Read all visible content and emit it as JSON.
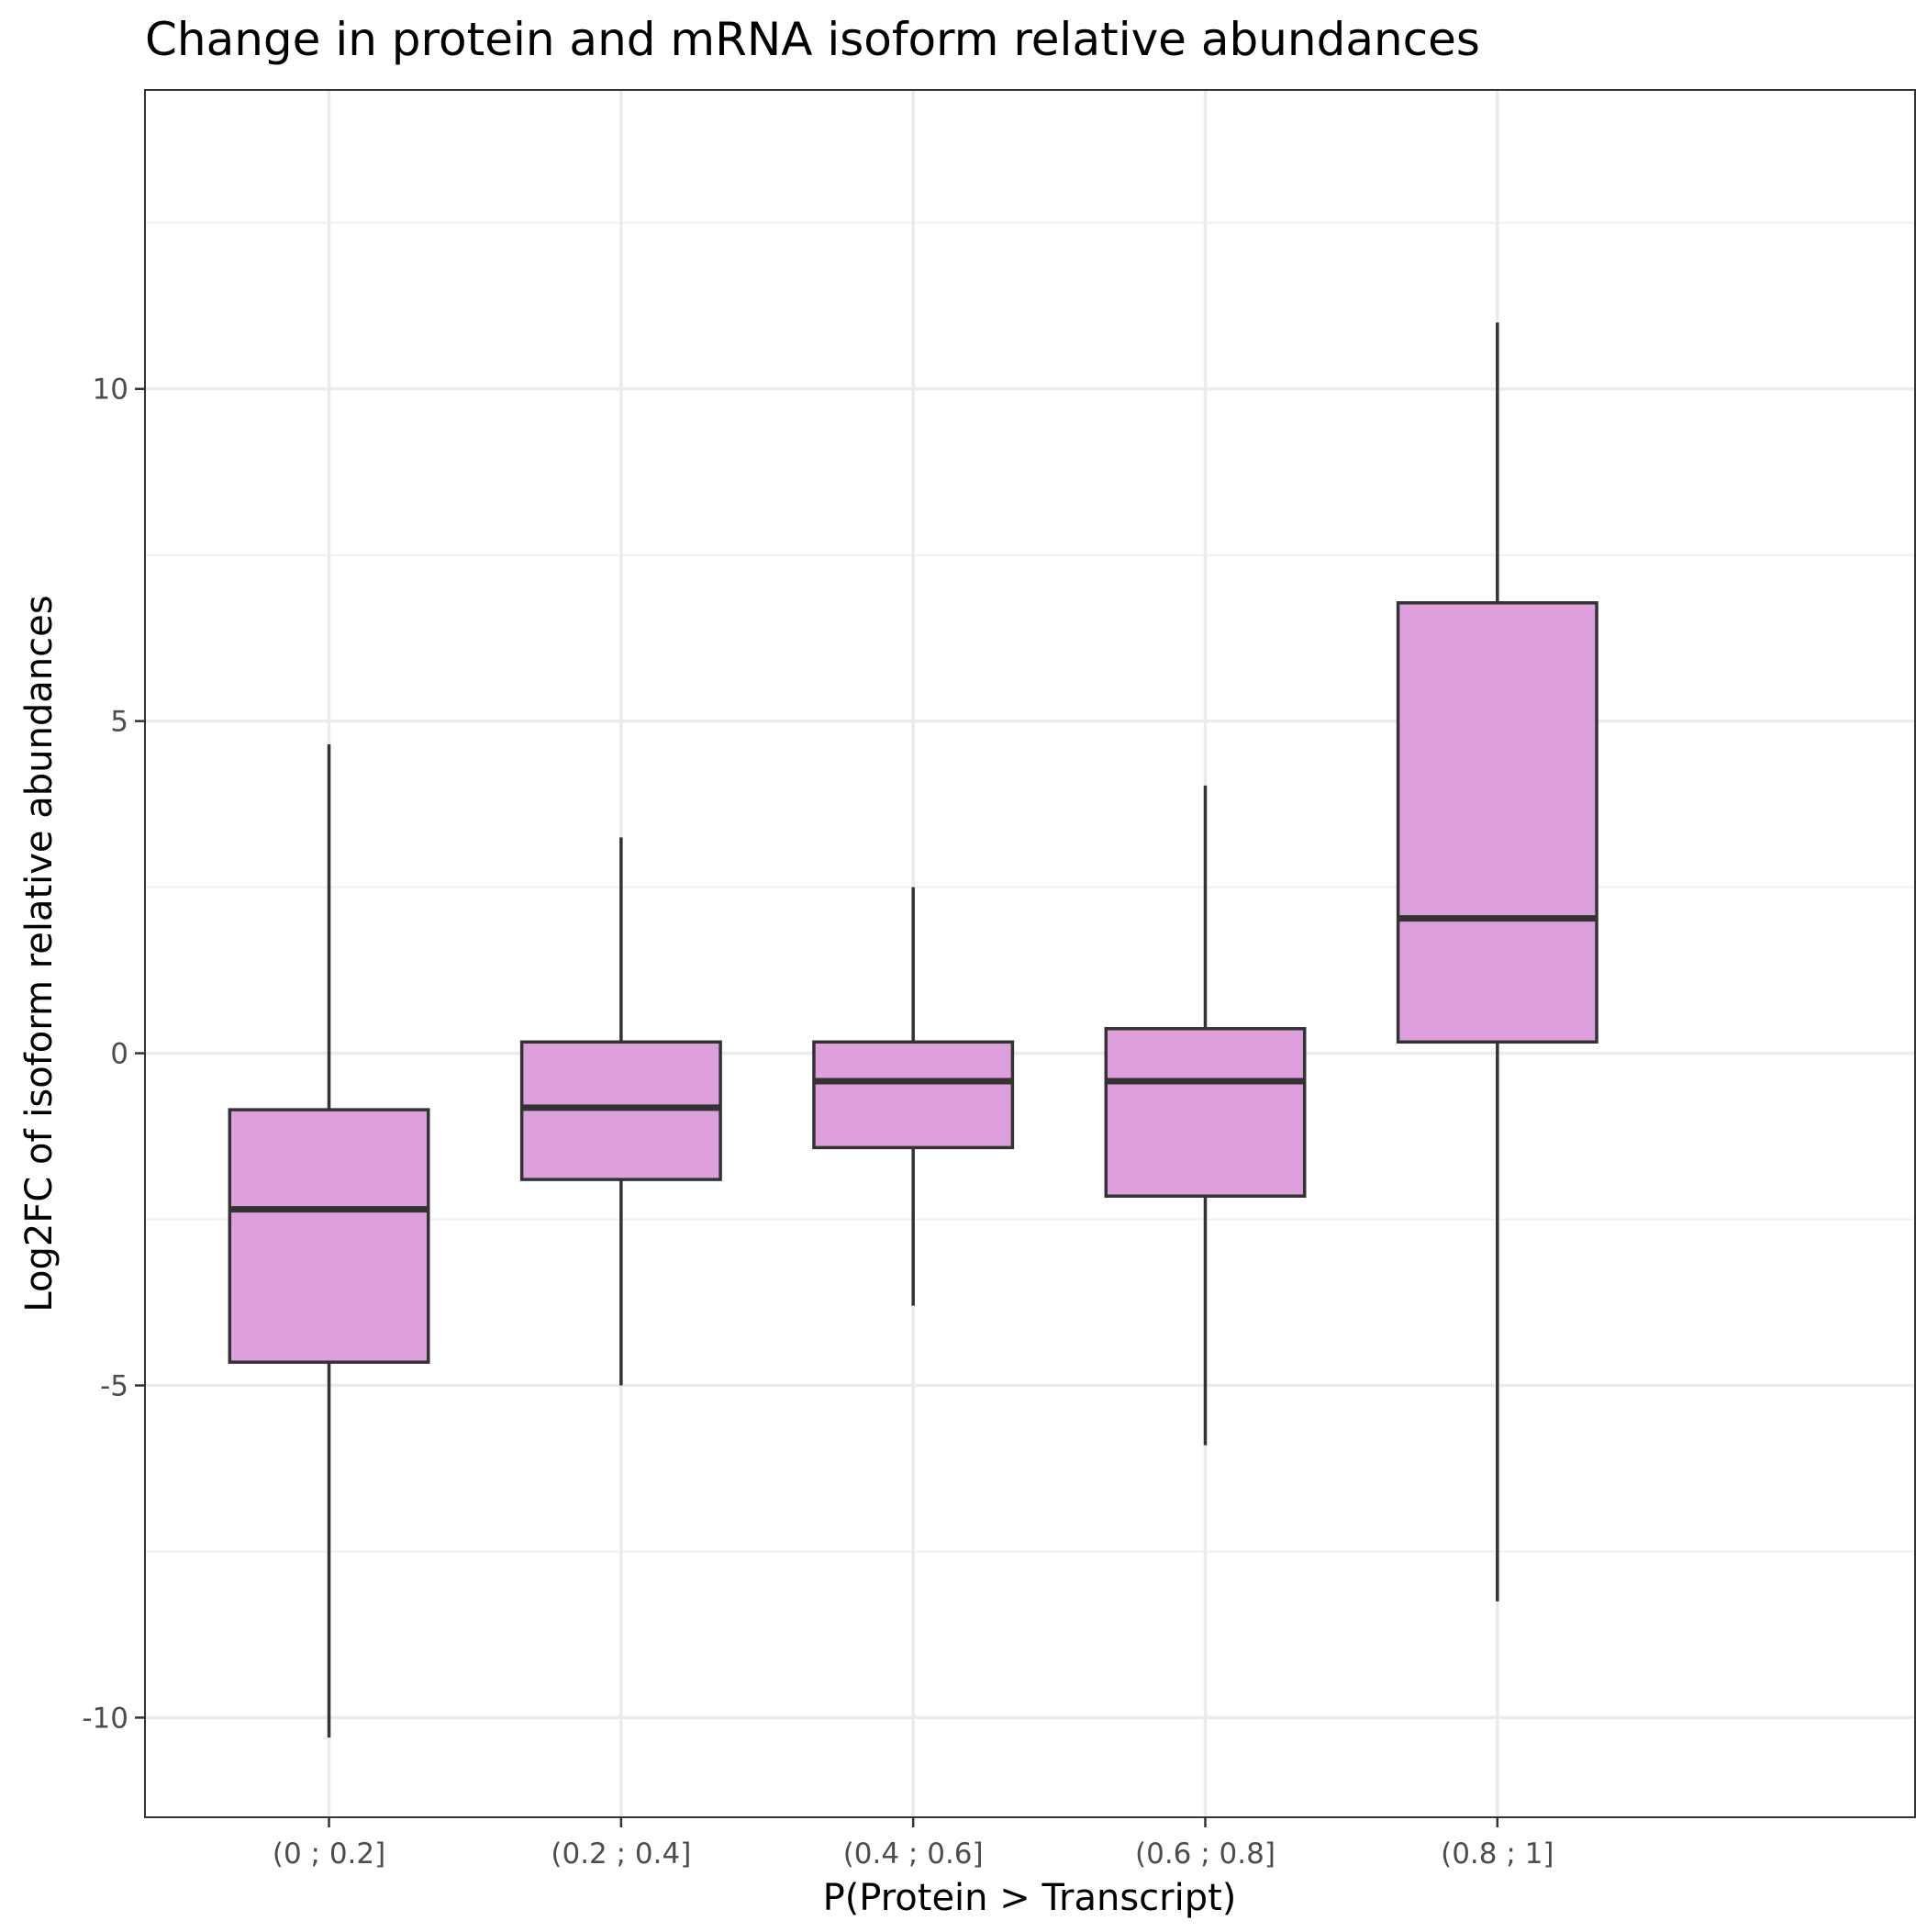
{
  "chart_data": {
    "type": "boxplot",
    "title": "Change in protein and mRNA isoform relative abundances",
    "xlabel": "P(Protein > Transcript)",
    "ylabel": "Log2FC of isoform relative abundances",
    "categories": [
      "(0 ; 0.2]",
      "(0.2 ; 0.4]",
      "(0.4 ; 0.6]",
      "(0.6 ; 0.8]",
      "(0.8 ; 1]"
    ],
    "ylim": [
      -11.5,
      14.5
    ],
    "yticks": [
      -10,
      -5,
      0,
      5,
      10
    ],
    "ytick_labels": [
      "-10",
      "-5",
      "0",
      "5",
      "10"
    ],
    "grid": true,
    "fill_color": "#DDA0DD",
    "line_color": "#333333",
    "boxes": [
      {
        "category": "(0 ; 0.2]",
        "whisker_low": -10.3,
        "q1": -4.65,
        "median": -2.35,
        "q3": -0.85,
        "whisker_high": 4.65
      },
      {
        "category": "(0.2 ; 0.4]",
        "whisker_low": -5.0,
        "q1": -1.9,
        "median": -0.82,
        "q3": 0.17,
        "whisker_high": 3.25
      },
      {
        "category": "(0.4 ; 0.6]",
        "whisker_low": -3.8,
        "q1": -1.42,
        "median": -0.42,
        "q3": 0.17,
        "whisker_high": 2.5
      },
      {
        "category": "(0.6 ; 0.8]",
        "whisker_low": -5.9,
        "q1": -2.15,
        "median": -0.42,
        "q3": 0.37,
        "whisker_high": 4.03
      },
      {
        "category": "(0.8 ; 1]",
        "whisker_low": -8.25,
        "q1": 0.17,
        "median": 2.03,
        "q3": 6.78,
        "whisker_high": 11.0
      }
    ]
  }
}
